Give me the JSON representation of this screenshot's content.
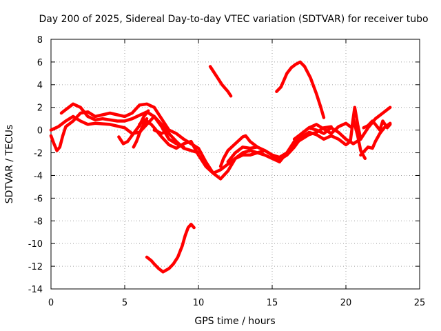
{
  "chart_data": {
    "type": "line",
    "title": "Day 200 of 2025, Sidereal Day-to-day VTEC variation (SDTVAR) for receiver tubo",
    "xlabel": "GPS time / hours",
    "ylabel": "SDTVAR / TECUs",
    "xlim": [
      0,
      25
    ],
    "ylim": [
      -14,
      8
    ],
    "xticks": [
      0,
      5,
      10,
      15,
      20,
      25
    ],
    "yticks": [
      -14,
      -12,
      -10,
      -8,
      -6,
      -4,
      -2,
      0,
      2,
      4,
      6,
      8
    ],
    "grid": true,
    "legend": "none",
    "series_color": "#ff0000",
    "series": [
      {
        "name": "track-1",
        "x": [
          0.0,
          0.2,
          0.4,
          0.6,
          0.8,
          1.0,
          1.5,
          2.0,
          2.5,
          3.0,
          4.0,
          5.0,
          5.5,
          6.0,
          6.5,
          7.0,
          7.5,
          8.0
        ],
        "y": [
          -0.5,
          -1.2,
          -1.8,
          -1.5,
          -0.5,
          0.3,
          0.8,
          1.5,
          1.6,
          1.2,
          1.5,
          1.2,
          1.5,
          2.2,
          2.3,
          2.0,
          1.0,
          0.0
        ]
      },
      {
        "name": "track-2",
        "x": [
          0.0,
          0.5,
          1.0,
          1.5,
          2.0,
          2.5,
          3.0,
          4.0,
          5.0,
          5.5,
          6.0,
          6.5,
          7.0,
          7.5,
          8.0,
          8.5,
          9.0
        ],
        "y": [
          0.0,
          0.3,
          0.8,
          1.2,
          0.8,
          0.5,
          0.6,
          0.5,
          0.2,
          -0.3,
          -0.2,
          0.5,
          1.2,
          0.3,
          -0.8,
          -1.2,
          -1.5
        ]
      },
      {
        "name": "track-3",
        "x": [
          0.7,
          1.0,
          1.5,
          2.0,
          2.5,
          3.0,
          3.5,
          4.0,
          4.5,
          5.0,
          5.5,
          6.0,
          6.5,
          7.0,
          7.5,
          8.0,
          8.5,
          9.0,
          9.5,
          10.0
        ],
        "y": [
          1.5,
          1.8,
          2.3,
          2.0,
          1.2,
          0.9,
          1.0,
          0.9,
          0.8,
          0.8,
          1.0,
          1.3,
          1.6,
          1.2,
          0.5,
          -0.3,
          -1.0,
          -1.6,
          -1.8,
          -2.0
        ]
      },
      {
        "name": "track-4",
        "x": [
          4.6,
          4.9,
          5.2,
          5.6,
          6.0,
          6.3,
          6.6
        ],
        "y": [
          -0.6,
          -1.2,
          -1.0,
          -0.3,
          0.4,
          1.2,
          1.7
        ]
      },
      {
        "name": "track-5",
        "x": [
          5.6,
          5.8,
          6.0,
          6.2,
          6.5
        ],
        "y": [
          -1.5,
          -1.0,
          -0.3,
          0.3,
          1.0
        ]
      },
      {
        "name": "track-6",
        "x": [
          6.0,
          6.4,
          6.8,
          7.0,
          7.5,
          8.0,
          8.5,
          9.0,
          9.5,
          10.0,
          10.5,
          11.0,
          11.5,
          12.0,
          12.5,
          13.0,
          13.5,
          14.0,
          14.5,
          15.0,
          15.5
        ],
        "y": [
          0.5,
          0.9,
          0.5,
          0.2,
          -0.6,
          -1.3,
          -1.6,
          -1.2,
          -1.0,
          -2.2,
          -3.2,
          -3.8,
          -3.5,
          -3.0,
          -2.5,
          -2.0,
          -1.8,
          -2.0,
          -2.2,
          -2.5,
          -2.8
        ]
      },
      {
        "name": "track-7",
        "x": [
          7.0,
          7.5,
          8.0,
          8.5,
          9.0,
          9.5,
          10.0,
          10.5,
          11.0,
          11.5,
          12.0,
          12.5,
          13.0,
          13.5,
          14.0,
          14.5,
          15.0,
          15.5,
          16.0,
          16.5,
          17.0,
          17.5,
          18.0,
          18.5,
          19.0,
          19.5,
          20.0,
          20.5,
          21.0,
          21.5,
          22.0,
          22.5,
          23.0
        ],
        "y": [
          0.0,
          -0.3,
          0.0,
          -0.3,
          -0.8,
          -1.2,
          -1.6,
          -2.8,
          -3.8,
          -4.3,
          -3.6,
          -2.5,
          -2.2,
          -2.2,
          -2.0,
          -1.8,
          -2.2,
          -2.8,
          -2.0,
          -1.0,
          -0.3,
          0.2,
          0.0,
          -0.3,
          0.2,
          -0.2,
          -0.8,
          -1.2,
          -0.8,
          0.2,
          1.0,
          1.5,
          2.0
        ]
      },
      {
        "name": "track-8",
        "x": [
          11.5,
          11.7,
          12.0,
          12.5,
          13.0,
          13.2,
          13.5,
          14.0
        ],
        "y": [
          -3.2,
          -2.5,
          -1.8,
          -1.2,
          -0.6,
          -0.5,
          -1.0,
          -1.5
        ]
      },
      {
        "name": "track-9",
        "x": [
          12.0,
          12.5,
          13.0,
          13.5,
          14.0,
          14.5,
          15.0,
          15.5,
          16.0,
          16.5,
          17.0,
          17.5,
          18.0,
          18.5,
          19.0
        ],
        "y": [
          -2.8,
          -2.0,
          -1.5,
          -1.6,
          -1.5,
          -1.8,
          -2.2,
          -2.4,
          -2.0,
          -1.2,
          -0.8,
          -0.4,
          -0.2,
          0.2,
          0.3
        ]
      },
      {
        "name": "track-10",
        "x": [
          15.5,
          16.0,
          16.5,
          17.0,
          17.5,
          18.0,
          18.5,
          19.0,
          19.5,
          20.0,
          20.3,
          20.5,
          20.8,
          21.0,
          21.3
        ],
        "y": [
          -2.6,
          -2.2,
          -1.5,
          -0.6,
          -0.2,
          -0.4,
          -0.8,
          -0.5,
          -0.8,
          -1.3,
          -1.0,
          1.0,
          -0.5,
          -1.8,
          -2.5
        ]
      },
      {
        "name": "track-11",
        "x": [
          16.5,
          17.0,
          17.5,
          18.0,
          18.5,
          19.0,
          19.5,
          20.0,
          20.4,
          20.6,
          20.8,
          21.0
        ],
        "y": [
          -0.8,
          -0.3,
          0.2,
          0.5,
          0.1,
          -0.3,
          0.3,
          0.6,
          0.2,
          2.0,
          0.5,
          -0.8
        ]
      },
      {
        "name": "track-12",
        "x": [
          21.0,
          21.5,
          21.8,
          22.0,
          22.3,
          22.6,
          23.0
        ],
        "y": [
          -2.2,
          -1.5,
          -1.6,
          -1.0,
          -0.3,
          0.2,
          0.6
        ]
      },
      {
        "name": "track-13",
        "x": [
          21.2,
          21.5,
          21.8,
          22.0,
          22.3,
          22.5,
          22.8,
          23.0
        ],
        "y": [
          0.2,
          0.4,
          0.8,
          0.5,
          0.0,
          0.8,
          0.2,
          0.5
        ]
      },
      {
        "name": "track-14",
        "x": [
          10.8,
          11.0,
          11.3,
          11.6,
          12.0,
          12.2
        ],
        "y": [
          5.6,
          5.2,
          4.6,
          4.0,
          3.4,
          3.0
        ]
      },
      {
        "name": "track-15",
        "x": [
          15.3,
          15.6,
          16.0,
          16.3,
          16.6,
          16.9,
          17.2,
          17.6,
          18.0,
          18.3,
          18.5
        ],
        "y": [
          3.4,
          3.8,
          5.0,
          5.5,
          5.8,
          6.0,
          5.6,
          4.6,
          3.2,
          2.0,
          1.1
        ]
      },
      {
        "name": "track-16",
        "x": [
          6.5,
          6.8,
          7.0,
          7.3,
          7.6,
          8.0,
          8.3,
          8.6,
          8.9,
          9.1,
          9.3,
          9.5,
          9.7
        ],
        "y": [
          -11.2,
          -11.5,
          -11.8,
          -12.2,
          -12.5,
          -12.2,
          -11.8,
          -11.2,
          -10.2,
          -9.3,
          -8.6,
          -8.3,
          -8.6
        ]
      }
    ]
  }
}
